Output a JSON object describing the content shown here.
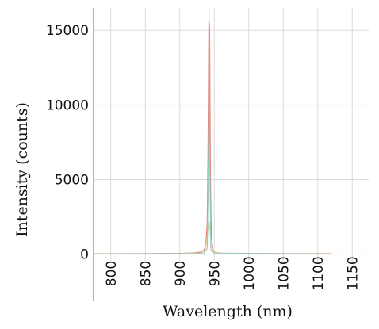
{
  "chart_data": {
    "type": "line",
    "title": "",
    "xlabel": "Wavelength (nm)",
    "ylabel": "Intensity (counts)",
    "xlim": [
      775,
      1175
    ],
    "ylim": [
      -500,
      16500
    ],
    "x_ticks": [
      800,
      850,
      900,
      950,
      1000,
      1050,
      1100,
      1150
    ],
    "x_tick_labels": [
      "800",
      "850",
      "900",
      "950",
      "1000",
      "1050",
      "1100",
      "1150"
    ],
    "y_ticks": [
      0,
      5000,
      10000,
      15000
    ],
    "y_tick_labels": [
      "0",
      "5000",
      "10000",
      "15000"
    ],
    "grid": true,
    "series": [
      {
        "color": "#e8796f",
        "x": [
          775,
          800,
          850,
          900,
          920,
          930,
          935,
          938,
          940,
          941,
          942,
          942.5,
          943,
          943.5,
          944,
          945,
          946,
          948,
          950,
          955,
          960,
          1000,
          1050,
          1100,
          1120
        ],
        "y": [
          20,
          20,
          25,
          40,
          70,
          120,
          250,
          600,
          2000,
          6000,
          12500,
          15600,
          15000,
          11000,
          6500,
          2400,
          900,
          300,
          150,
          90,
          60,
          40,
          30,
          25,
          20
        ]
      },
      {
        "color": "#e7d29b",
        "x": [
          775,
          900,
          930,
          936,
          939,
          941,
          942.5,
          944,
          946,
          950,
          960,
          1000,
          1120
        ],
        "y": [
          15,
          30,
          70,
          200,
          800,
          1800,
          2200,
          1500,
          500,
          150,
          60,
          30,
          15
        ]
      },
      {
        "color": "#8fd0c4",
        "x": [
          775,
          935,
          940,
          942,
          942.5,
          943,
          945,
          950,
          1120
        ],
        "y": [
          10,
          40,
          400,
          9000,
          16500,
          8000,
          300,
          60,
          10
        ]
      }
    ]
  }
}
